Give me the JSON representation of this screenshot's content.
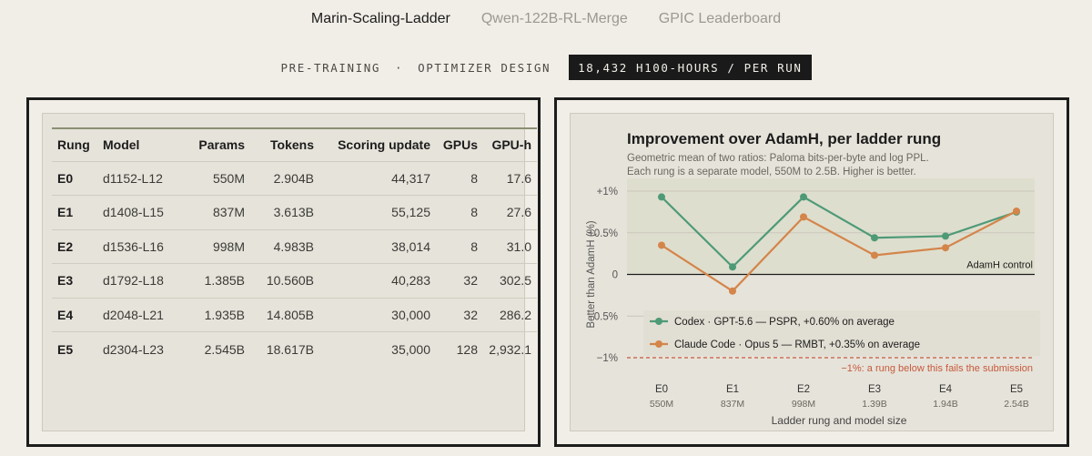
{
  "tabs": [
    {
      "label": "Marin-Scaling-Ladder",
      "active": true
    },
    {
      "label": "Qwen-122B-RL-Merge",
      "active": false
    },
    {
      "label": "GPIC Leaderboard",
      "active": false
    }
  ],
  "subline": {
    "part1": "PRE-TRAINING",
    "separator": "·",
    "part2": "OPTIMIZER DESIGN",
    "pill": "18,432 H100-HOURS / PER RUN"
  },
  "table": {
    "headers": [
      "Rung",
      "Model",
      "Params",
      "Tokens",
      "Scoring update",
      "GPUs",
      "GPU-h"
    ],
    "rows": [
      [
        "E0",
        "d1152-L12",
        "550M",
        "2.904B",
        "44,317",
        "8",
        "17.6"
      ],
      [
        "E1",
        "d1408-L15",
        "837M",
        "3.613B",
        "55,125",
        "8",
        "27.6"
      ],
      [
        "E2",
        "d1536-L16",
        "998M",
        "4.983B",
        "38,014",
        "8",
        "31.0"
      ],
      [
        "E3",
        "d1792-L18",
        "1.385B",
        "10.560B",
        "40,283",
        "32",
        "302.5"
      ],
      [
        "E4",
        "d2048-L21",
        "1.935B",
        "14.805B",
        "30,000",
        "32",
        "286.2"
      ],
      [
        "E5",
        "d2304-L23",
        "2.545B",
        "18.617B",
        "35,000",
        "128",
        "2,932.1"
      ]
    ]
  },
  "chart": {
    "title": "Improvement over AdamH, per ladder rung",
    "subtitle_line1": "Geometric mean of two ratios: Paloma bits-per-byte and log PPL.",
    "subtitle_line2": "Each rung is a separate model, 550M to 2.5B. Higher is better.",
    "baseline_label": "AdamH control",
    "threshold_label": "−1%: a rung below this fails the submission"
  },
  "chart_data": {
    "type": "line",
    "title": "Improvement over AdamH, per ladder rung",
    "xlabel": "Ladder rung and model size",
    "ylabel": "Better than AdamH (%)",
    "categories": [
      "E0",
      "E1",
      "E2",
      "E3",
      "E4",
      "E5"
    ],
    "category_sublabels": [
      "550M",
      "837M",
      "998M",
      "1.39B",
      "1.94B",
      "2.54B"
    ],
    "ylim": [
      -1,
      1
    ],
    "yticks": [
      -1,
      -0.5,
      0,
      0.5,
      1
    ],
    "ytick_labels": [
      "−1%",
      "−0.5%",
      "0",
      "+0.5%",
      "+1%"
    ],
    "grid": true,
    "legend_position": "lower-left",
    "series": [
      {
        "name": "Codex · GPT-5.6 — PSPR, +0.60% on average",
        "color": "#4e9a77",
        "values": [
          0.93,
          0.09,
          0.93,
          0.44,
          0.46,
          0.75
        ]
      },
      {
        "name": "Claude Code · Opus 5 — RMBT, +0.35% on average",
        "color": "#d4854a",
        "values": [
          0.35,
          -0.2,
          0.69,
          0.23,
          0.32,
          0.76
        ]
      }
    ],
    "reference_lines": [
      {
        "y": 0,
        "label": "AdamH control",
        "color": "#1c1c1c"
      },
      {
        "y": -1,
        "label": "−1%: a rung below this fails the submission",
        "color": "#c65a3c"
      }
    ]
  }
}
